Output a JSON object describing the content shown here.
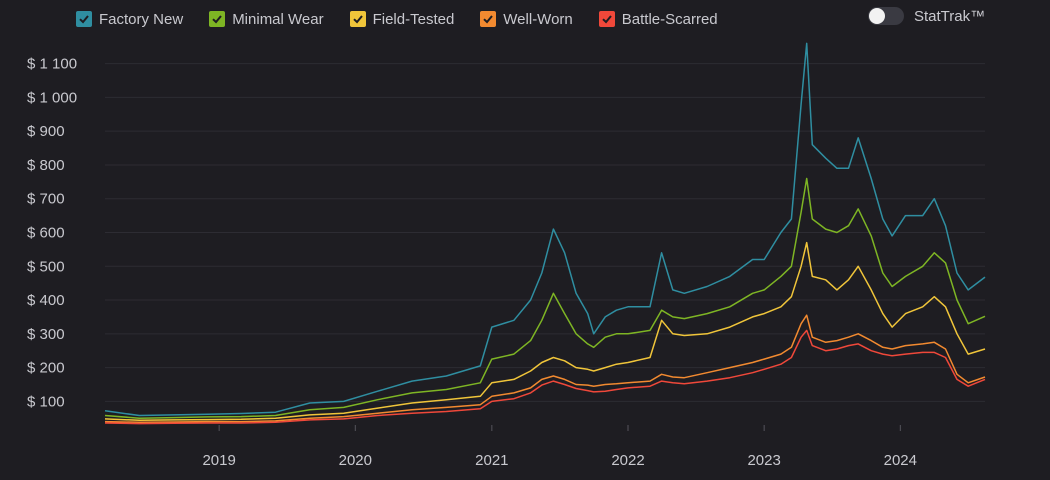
{
  "legend": {
    "items": [
      {
        "label": "Factory New",
        "color": "#2f8ea1"
      },
      {
        "label": "Minimal Wear",
        "color": "#7eb524"
      },
      {
        "label": "Field-Tested",
        "color": "#f0c53a"
      },
      {
        "label": "Well-Worn",
        "color": "#f28a30"
      },
      {
        "label": "Battle-Scarred",
        "color": "#f0483a"
      }
    ]
  },
  "toggle": {
    "label": "StatTrak™",
    "state": "off"
  },
  "chart_data": {
    "type": "line",
    "title": "",
    "xlabel": "",
    "ylabel": "",
    "x_axis": "date",
    "xlim": [
      "2018-03-01",
      "2024-08-15"
    ],
    "ylim": [
      30,
      1170
    ],
    "grid": "horizontal",
    "legend_position": "top-left",
    "yticks": [
      {
        "value": 100,
        "label": "$ 100"
      },
      {
        "value": 200,
        "label": "$ 200"
      },
      {
        "value": 300,
        "label": "$ 300"
      },
      {
        "value": 400,
        "label": "$ 400"
      },
      {
        "value": 500,
        "label": "$ 500"
      },
      {
        "value": 600,
        "label": "$ 600"
      },
      {
        "value": 700,
        "label": "$ 700"
      },
      {
        "value": 800,
        "label": "$ 800"
      },
      {
        "value": 900,
        "label": "$ 900"
      },
      {
        "value": 1000,
        "label": "$ 1 000"
      },
      {
        "value": 1100,
        "label": "$ 1 100"
      }
    ],
    "xticks": [
      {
        "value": "2019-01-01",
        "label": "2019"
      },
      {
        "value": "2020-01-01",
        "label": "2020"
      },
      {
        "value": "2021-01-01",
        "label": "2021"
      },
      {
        "value": "2022-01-01",
        "label": "2022"
      },
      {
        "value": "2023-01-01",
        "label": "2023"
      },
      {
        "value": "2024-01-01",
        "label": "2024"
      }
    ],
    "series": [
      {
        "name": "Factory New",
        "color": "#2f8ea1",
        "points": [
          [
            "2018-03-01",
            72
          ],
          [
            "2018-06-01",
            58
          ],
          [
            "2018-09-01",
            60
          ],
          [
            "2018-12-01",
            62
          ],
          [
            "2019-03-01",
            64
          ],
          [
            "2019-06-01",
            68
          ],
          [
            "2019-09-01",
            95
          ],
          [
            "2019-12-01",
            100
          ],
          [
            "2020-03-01",
            130
          ],
          [
            "2020-06-01",
            160
          ],
          [
            "2020-09-01",
            175
          ],
          [
            "2020-12-01",
            205
          ],
          [
            "2021-01-01",
            320
          ],
          [
            "2021-03-01",
            340
          ],
          [
            "2021-04-15",
            400
          ],
          [
            "2021-05-15",
            480
          ],
          [
            "2021-06-15",
            610
          ],
          [
            "2021-07-15",
            540
          ],
          [
            "2021-08-15",
            420
          ],
          [
            "2021-09-15",
            360
          ],
          [
            "2021-10-01",
            300
          ],
          [
            "2021-11-01",
            350
          ],
          [
            "2021-12-01",
            370
          ],
          [
            "2022-01-01",
            380
          ],
          [
            "2022-03-01",
            380
          ],
          [
            "2022-04-01",
            540
          ],
          [
            "2022-05-01",
            430
          ],
          [
            "2022-06-01",
            420
          ],
          [
            "2022-08-01",
            440
          ],
          [
            "2022-10-01",
            470
          ],
          [
            "2022-12-01",
            520
          ],
          [
            "2023-01-01",
            520
          ],
          [
            "2023-02-15",
            600
          ],
          [
            "2023-03-15",
            640
          ],
          [
            "2023-04-10",
            980
          ],
          [
            "2023-04-25",
            1160
          ],
          [
            "2023-05-10",
            860
          ],
          [
            "2023-06-15",
            820
          ],
          [
            "2023-07-15",
            790
          ],
          [
            "2023-08-15",
            790
          ],
          [
            "2023-09-10",
            880
          ],
          [
            "2023-10-15",
            760
          ],
          [
            "2023-11-15",
            640
          ],
          [
            "2023-12-10",
            590
          ],
          [
            "2024-01-15",
            650
          ],
          [
            "2024-03-01",
            650
          ],
          [
            "2024-04-01",
            700
          ],
          [
            "2024-05-01",
            620
          ],
          [
            "2024-06-01",
            480
          ],
          [
            "2024-07-01",
            430
          ],
          [
            "2024-08-15",
            468
          ]
        ]
      },
      {
        "name": "Minimal Wear",
        "color": "#7eb524",
        "points": [
          [
            "2018-03-01",
            58
          ],
          [
            "2018-06-01",
            50
          ],
          [
            "2018-09-01",
            52
          ],
          [
            "2018-12-01",
            54
          ],
          [
            "2019-03-01",
            55
          ],
          [
            "2019-06-01",
            58
          ],
          [
            "2019-09-01",
            75
          ],
          [
            "2019-12-01",
            82
          ],
          [
            "2020-03-01",
            105
          ],
          [
            "2020-06-01",
            125
          ],
          [
            "2020-09-01",
            135
          ],
          [
            "2020-12-01",
            155
          ],
          [
            "2021-01-01",
            225
          ],
          [
            "2021-03-01",
            240
          ],
          [
            "2021-04-15",
            280
          ],
          [
            "2021-05-15",
            340
          ],
          [
            "2021-06-15",
            420
          ],
          [
            "2021-07-15",
            360
          ],
          [
            "2021-08-15",
            300
          ],
          [
            "2021-09-15",
            270
          ],
          [
            "2021-10-01",
            260
          ],
          [
            "2021-11-01",
            290
          ],
          [
            "2021-12-01",
            300
          ],
          [
            "2022-01-01",
            300
          ],
          [
            "2022-03-01",
            310
          ],
          [
            "2022-04-01",
            370
          ],
          [
            "2022-05-01",
            350
          ],
          [
            "2022-06-01",
            345
          ],
          [
            "2022-08-01",
            360
          ],
          [
            "2022-10-01",
            380
          ],
          [
            "2022-12-01",
            420
          ],
          [
            "2023-01-01",
            430
          ],
          [
            "2023-02-15",
            470
          ],
          [
            "2023-03-15",
            500
          ],
          [
            "2023-04-10",
            660
          ],
          [
            "2023-04-25",
            760
          ],
          [
            "2023-05-10",
            640
          ],
          [
            "2023-06-15",
            610
          ],
          [
            "2023-07-15",
            600
          ],
          [
            "2023-08-15",
            620
          ],
          [
            "2023-09-10",
            670
          ],
          [
            "2023-10-15",
            590
          ],
          [
            "2023-11-15",
            480
          ],
          [
            "2023-12-10",
            440
          ],
          [
            "2024-01-15",
            470
          ],
          [
            "2024-03-01",
            500
          ],
          [
            "2024-04-01",
            540
          ],
          [
            "2024-05-01",
            510
          ],
          [
            "2024-06-01",
            400
          ],
          [
            "2024-07-01",
            330
          ],
          [
            "2024-08-15",
            352
          ]
        ]
      },
      {
        "name": "Field-Tested",
        "color": "#f0c53a",
        "points": [
          [
            "2018-03-01",
            48
          ],
          [
            "2018-06-01",
            44
          ],
          [
            "2018-09-01",
            45
          ],
          [
            "2018-12-01",
            46
          ],
          [
            "2019-03-01",
            47
          ],
          [
            "2019-06-01",
            50
          ],
          [
            "2019-09-01",
            60
          ],
          [
            "2019-12-01",
            65
          ],
          [
            "2020-03-01",
            80
          ],
          [
            "2020-06-01",
            95
          ],
          [
            "2020-09-01",
            105
          ],
          [
            "2020-12-01",
            115
          ],
          [
            "2021-01-01",
            155
          ],
          [
            "2021-03-01",
            165
          ],
          [
            "2021-04-15",
            190
          ],
          [
            "2021-05-15",
            215
          ],
          [
            "2021-06-15",
            230
          ],
          [
            "2021-07-15",
            220
          ],
          [
            "2021-08-15",
            200
          ],
          [
            "2021-09-15",
            195
          ],
          [
            "2021-10-01",
            190
          ],
          [
            "2021-11-01",
            200
          ],
          [
            "2021-12-01",
            210
          ],
          [
            "2022-01-01",
            215
          ],
          [
            "2022-03-01",
            230
          ],
          [
            "2022-04-01",
            340
          ],
          [
            "2022-05-01",
            300
          ],
          [
            "2022-06-01",
            295
          ],
          [
            "2022-08-01",
            300
          ],
          [
            "2022-10-01",
            320
          ],
          [
            "2022-12-01",
            350
          ],
          [
            "2023-01-01",
            360
          ],
          [
            "2023-02-15",
            380
          ],
          [
            "2023-03-15",
            410
          ],
          [
            "2023-04-10",
            500
          ],
          [
            "2023-04-25",
            570
          ],
          [
            "2023-05-10",
            470
          ],
          [
            "2023-06-15",
            460
          ],
          [
            "2023-07-15",
            430
          ],
          [
            "2023-08-15",
            460
          ],
          [
            "2023-09-10",
            500
          ],
          [
            "2023-10-15",
            430
          ],
          [
            "2023-11-15",
            360
          ],
          [
            "2023-12-10",
            320
          ],
          [
            "2024-01-15",
            360
          ],
          [
            "2024-03-01",
            380
          ],
          [
            "2024-04-01",
            410
          ],
          [
            "2024-05-01",
            380
          ],
          [
            "2024-06-01",
            300
          ],
          [
            "2024-07-01",
            240
          ],
          [
            "2024-08-15",
            255
          ]
        ]
      },
      {
        "name": "Well-Worn",
        "color": "#f28a30",
        "points": [
          [
            "2018-03-01",
            40
          ],
          [
            "2018-06-01",
            38
          ],
          [
            "2018-09-01",
            39
          ],
          [
            "2018-12-01",
            40
          ],
          [
            "2019-03-01",
            40
          ],
          [
            "2019-06-01",
            42
          ],
          [
            "2019-09-01",
            50
          ],
          [
            "2019-12-01",
            55
          ],
          [
            "2020-03-01",
            65
          ],
          [
            "2020-06-01",
            75
          ],
          [
            "2020-09-01",
            82
          ],
          [
            "2020-12-01",
            90
          ],
          [
            "2021-01-01",
            115
          ],
          [
            "2021-03-01",
            125
          ],
          [
            "2021-04-15",
            140
          ],
          [
            "2021-05-15",
            165
          ],
          [
            "2021-06-15",
            175
          ],
          [
            "2021-07-15",
            165
          ],
          [
            "2021-08-15",
            150
          ],
          [
            "2021-09-15",
            148
          ],
          [
            "2021-10-01",
            145
          ],
          [
            "2021-11-01",
            150
          ],
          [
            "2021-12-01",
            152
          ],
          [
            "2022-01-01",
            155
          ],
          [
            "2022-03-01",
            160
          ],
          [
            "2022-04-01",
            180
          ],
          [
            "2022-05-01",
            172
          ],
          [
            "2022-06-01",
            170
          ],
          [
            "2022-08-01",
            185
          ],
          [
            "2022-10-01",
            200
          ],
          [
            "2022-12-01",
            215
          ],
          [
            "2023-01-01",
            225
          ],
          [
            "2023-02-15",
            240
          ],
          [
            "2023-03-15",
            260
          ],
          [
            "2023-04-10",
            330
          ],
          [
            "2023-04-25",
            355
          ],
          [
            "2023-05-10",
            290
          ],
          [
            "2023-06-15",
            275
          ],
          [
            "2023-07-15",
            280
          ],
          [
            "2023-08-15",
            290
          ],
          [
            "2023-09-10",
            300
          ],
          [
            "2023-10-15",
            280
          ],
          [
            "2023-11-15",
            260
          ],
          [
            "2023-12-10",
            255
          ],
          [
            "2024-01-15",
            265
          ],
          [
            "2024-03-01",
            270
          ],
          [
            "2024-04-01",
            275
          ],
          [
            "2024-05-01",
            255
          ],
          [
            "2024-06-01",
            180
          ],
          [
            "2024-07-01",
            155
          ],
          [
            "2024-08-15",
            172
          ]
        ]
      },
      {
        "name": "Battle-Scarred",
        "color": "#f0483a",
        "points": [
          [
            "2018-03-01",
            36
          ],
          [
            "2018-06-01",
            34
          ],
          [
            "2018-09-01",
            35
          ],
          [
            "2018-12-01",
            36
          ],
          [
            "2019-03-01",
            36
          ],
          [
            "2019-06-01",
            38
          ],
          [
            "2019-09-01",
            45
          ],
          [
            "2019-12-01",
            48
          ],
          [
            "2020-03-01",
            58
          ],
          [
            "2020-06-01",
            65
          ],
          [
            "2020-09-01",
            70
          ],
          [
            "2020-12-01",
            78
          ],
          [
            "2021-01-01",
            100
          ],
          [
            "2021-03-01",
            108
          ],
          [
            "2021-04-15",
            125
          ],
          [
            "2021-05-15",
            148
          ],
          [
            "2021-06-15",
            160
          ],
          [
            "2021-07-15",
            150
          ],
          [
            "2021-08-15",
            138
          ],
          [
            "2021-09-15",
            132
          ],
          [
            "2021-10-01",
            128
          ],
          [
            "2021-11-01",
            130
          ],
          [
            "2021-12-01",
            135
          ],
          [
            "2022-01-01",
            140
          ],
          [
            "2022-03-01",
            145
          ],
          [
            "2022-04-01",
            160
          ],
          [
            "2022-05-01",
            155
          ],
          [
            "2022-06-01",
            152
          ],
          [
            "2022-08-01",
            160
          ],
          [
            "2022-10-01",
            170
          ],
          [
            "2022-12-01",
            185
          ],
          [
            "2023-01-01",
            195
          ],
          [
            "2023-02-15",
            210
          ],
          [
            "2023-03-15",
            230
          ],
          [
            "2023-04-10",
            290
          ],
          [
            "2023-04-25",
            310
          ],
          [
            "2023-05-10",
            265
          ],
          [
            "2023-06-15",
            250
          ],
          [
            "2023-07-15",
            255
          ],
          [
            "2023-08-15",
            265
          ],
          [
            "2023-09-10",
            270
          ],
          [
            "2023-10-15",
            250
          ],
          [
            "2023-11-15",
            240
          ],
          [
            "2023-12-10",
            235
          ],
          [
            "2024-01-15",
            240
          ],
          [
            "2024-03-01",
            245
          ],
          [
            "2024-04-01",
            245
          ],
          [
            "2024-05-01",
            230
          ],
          [
            "2024-06-01",
            165
          ],
          [
            "2024-07-01",
            145
          ],
          [
            "2024-08-15",
            165
          ]
        ]
      }
    ]
  }
}
